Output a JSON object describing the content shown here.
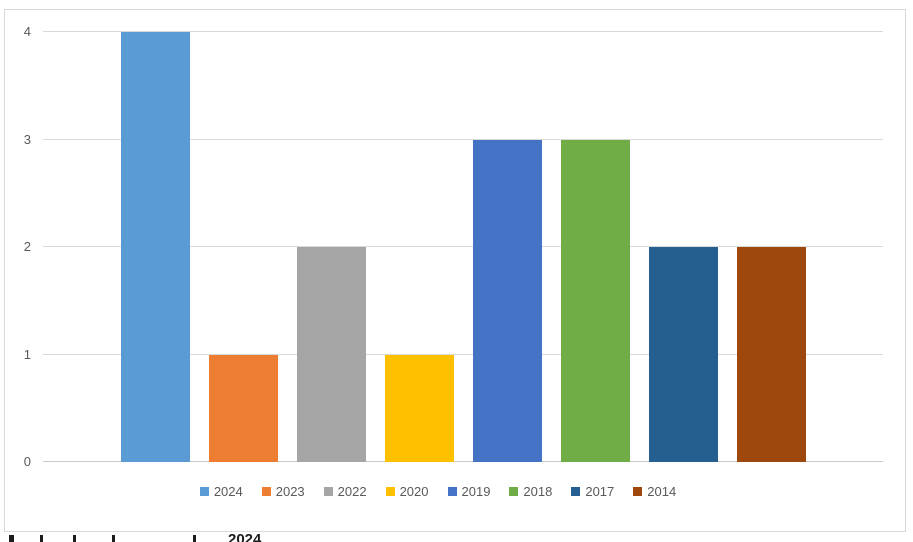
{
  "chart": {
    "frame_border_color": "#d9d9d9",
    "grid_color": "#d9d9d9",
    "axis_line_color": "#c9c9c9",
    "axis_label_color": "#595959",
    "legend_text_color": "#595959",
    "background": "#ffffff"
  },
  "chart_data": {
    "type": "bar",
    "categories": [
      ""
    ],
    "series": [
      {
        "name": "2024",
        "values": [
          4
        ],
        "color": "#5B9BD5"
      },
      {
        "name": "2023",
        "values": [
          1
        ],
        "color": "#ED7D31"
      },
      {
        "name": "2022",
        "values": [
          2
        ],
        "color": "#A5A5A5"
      },
      {
        "name": "2020",
        "values": [
          1
        ],
        "color": "#FFC000"
      },
      {
        "name": "2019",
        "values": [
          3
        ],
        "color": "#4472C4"
      },
      {
        "name": "2018",
        "values": [
          3
        ],
        "color": "#70AD47"
      },
      {
        "name": "2017",
        "values": [
          2
        ],
        "color": "#255E91"
      },
      {
        "name": "2014",
        "values": [
          2
        ],
        "color": "#9E480E"
      }
    ],
    "ylim": [
      0,
      4
    ],
    "y_ticks": [
      0,
      1,
      2,
      3,
      4
    ],
    "grid": true,
    "legend_position": "bottom"
  },
  "footer": {
    "clipped_text_visible_fragment": "2024"
  }
}
